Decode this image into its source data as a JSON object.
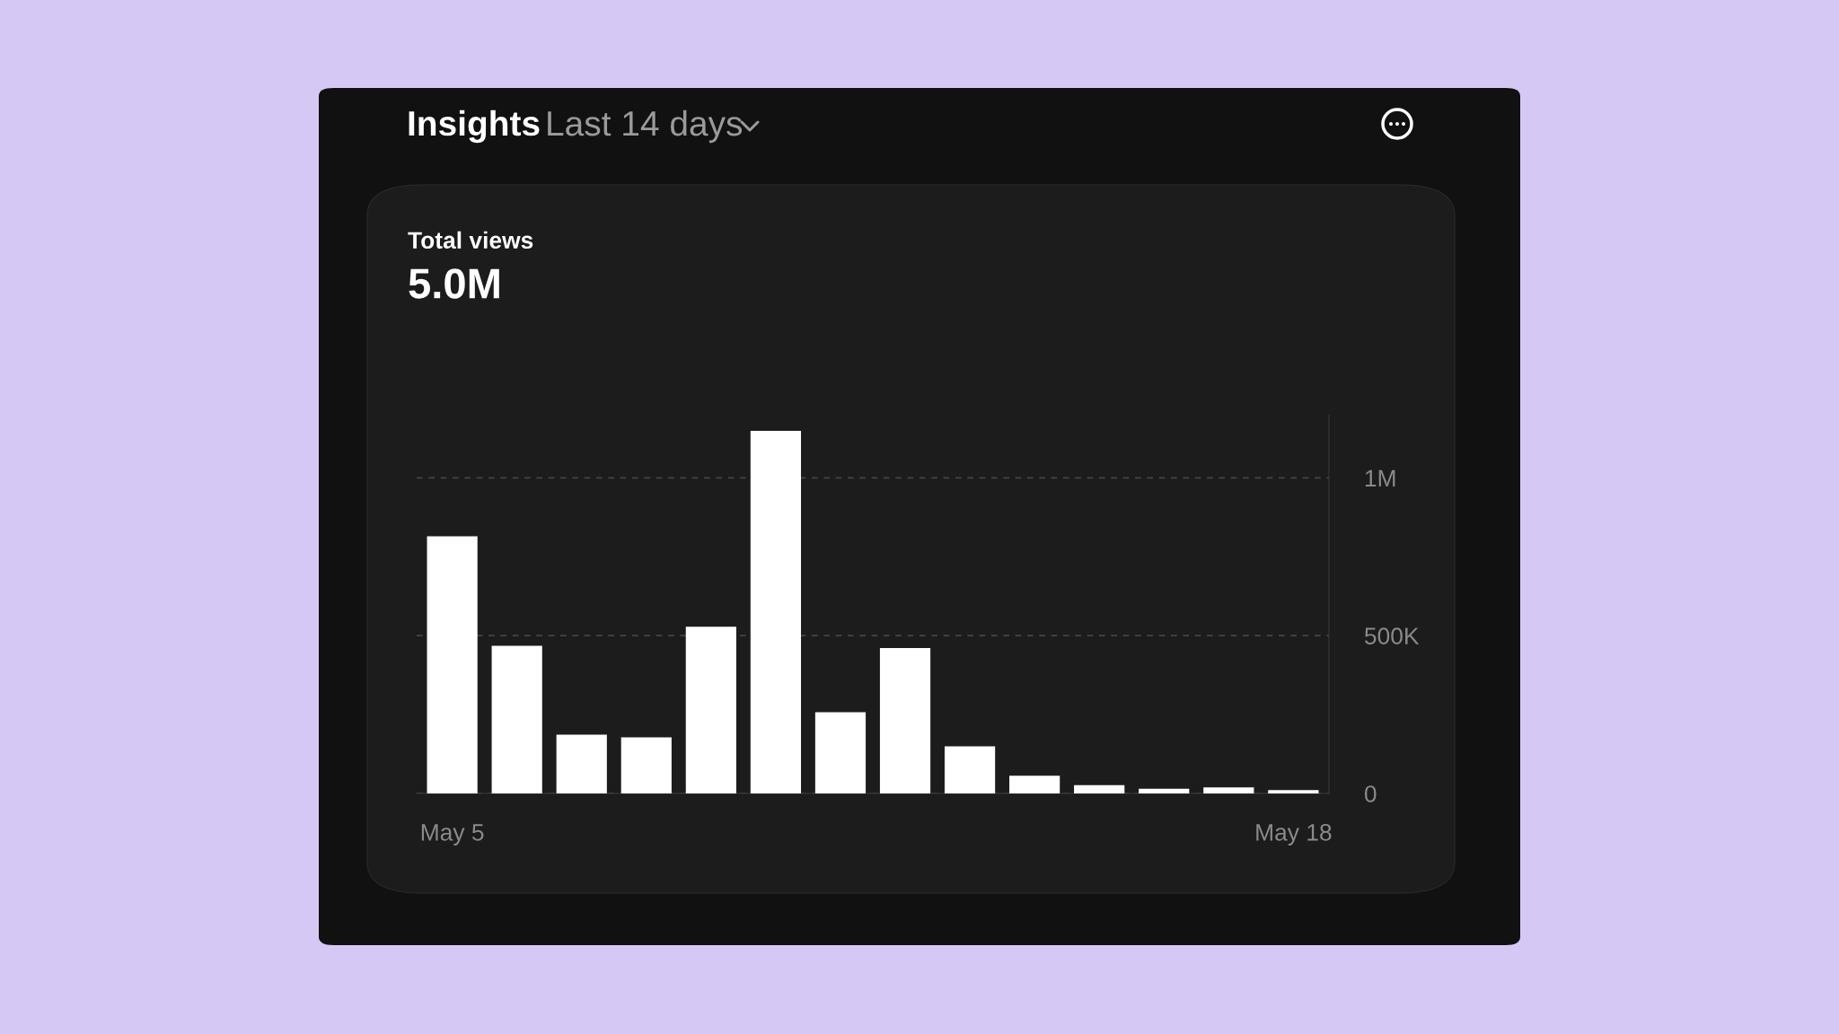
{
  "chart_data": {
    "type": "bar",
    "title": "Insights",
    "subtitle": "Last 14 days",
    "annotations": [
      "Total views",
      "5.0M"
    ],
    "categories": [
      "May 5",
      null,
      null,
      null,
      null,
      null,
      null,
      null,
      null,
      null,
      null,
      null,
      null,
      "May 18"
    ],
    "values": [
      815000,
      468000,
      186000,
      178000,
      528000,
      1149000,
      257000,
      461000,
      149000,
      56000,
      26000,
      15000,
      19000,
      11000
    ],
    "color": "#ffffff",
    "ylim": [
      0,
      1200000
    ],
    "yticks": [
      {
        "value": 0,
        "label": "0"
      },
      {
        "value": 500000,
        "label": "500K"
      },
      {
        "value": 1000000,
        "label": "1M"
      }
    ],
    "grid": "y",
    "line_style": "dashed"
  }
}
